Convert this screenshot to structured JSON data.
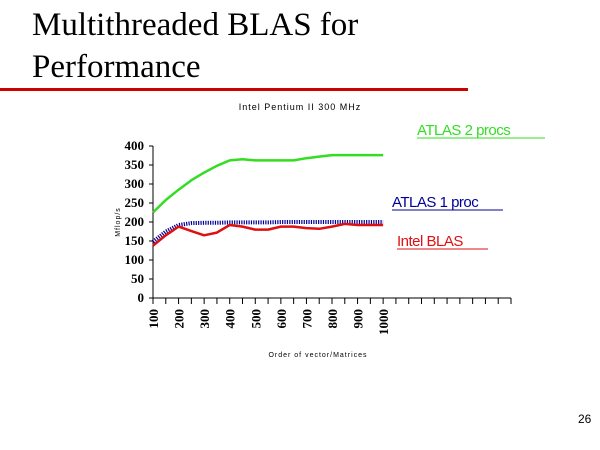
{
  "slide": {
    "title_line1": "Multithreaded BLAS for",
    "title_line2": "Performance",
    "page_number": "26"
  },
  "colors": {
    "title_rule": "#cc0000"
  },
  "chart_data": {
    "type": "line",
    "title": "Intel Pentium II 300 MHz",
    "xlabel": "Order of vector/Matrices",
    "ylabel": "Mflop/s",
    "x": [
      100,
      150,
      200,
      250,
      300,
      350,
      400,
      450,
      500,
      550,
      600,
      650,
      700,
      750,
      800,
      850,
      900,
      950,
      1000
    ],
    "x_ticks": [
      100,
      200,
      300,
      400,
      500,
      600,
      700,
      800,
      900,
      1000
    ],
    "x_tick_labels": [
      "100",
      "200",
      "300",
      "400",
      "500",
      "600",
      "700",
      "800",
      "900",
      "1000"
    ],
    "xlim": [
      100,
      1500
    ],
    "ylim": [
      0,
      400
    ],
    "y_ticks": [
      0,
      50,
      100,
      150,
      200,
      250,
      300,
      350,
      400
    ],
    "y_tick_labels": [
      "0",
      "50",
      "100",
      "150",
      "200",
      "250",
      "300",
      "350",
      "400"
    ],
    "grid": false,
    "series": [
      {
        "name": "ATLAS 2 procs",
        "color": "#33dd22",
        "values": [
          225,
          258,
          285,
          310,
          330,
          348,
          362,
          365,
          362,
          362,
          362,
          362,
          368,
          372,
          376,
          376,
          376,
          376,
          376
        ]
      },
      {
        "name": "ATLAS 1 proc",
        "color": "#000099",
        "values": [
          148,
          175,
          192,
          197,
          198,
          198,
          199,
          199,
          199,
          199,
          200,
          200,
          200,
          200,
          200,
          200,
          200,
          200,
          200
        ]
      },
      {
        "name": "Intel BLAS",
        "color": "#dd1111",
        "values": [
          138,
          165,
          188,
          176,
          165,
          172,
          192,
          188,
          180,
          180,
          188,
          188,
          184,
          182,
          188,
          195,
          192,
          192,
          192
        ]
      }
    ]
  }
}
